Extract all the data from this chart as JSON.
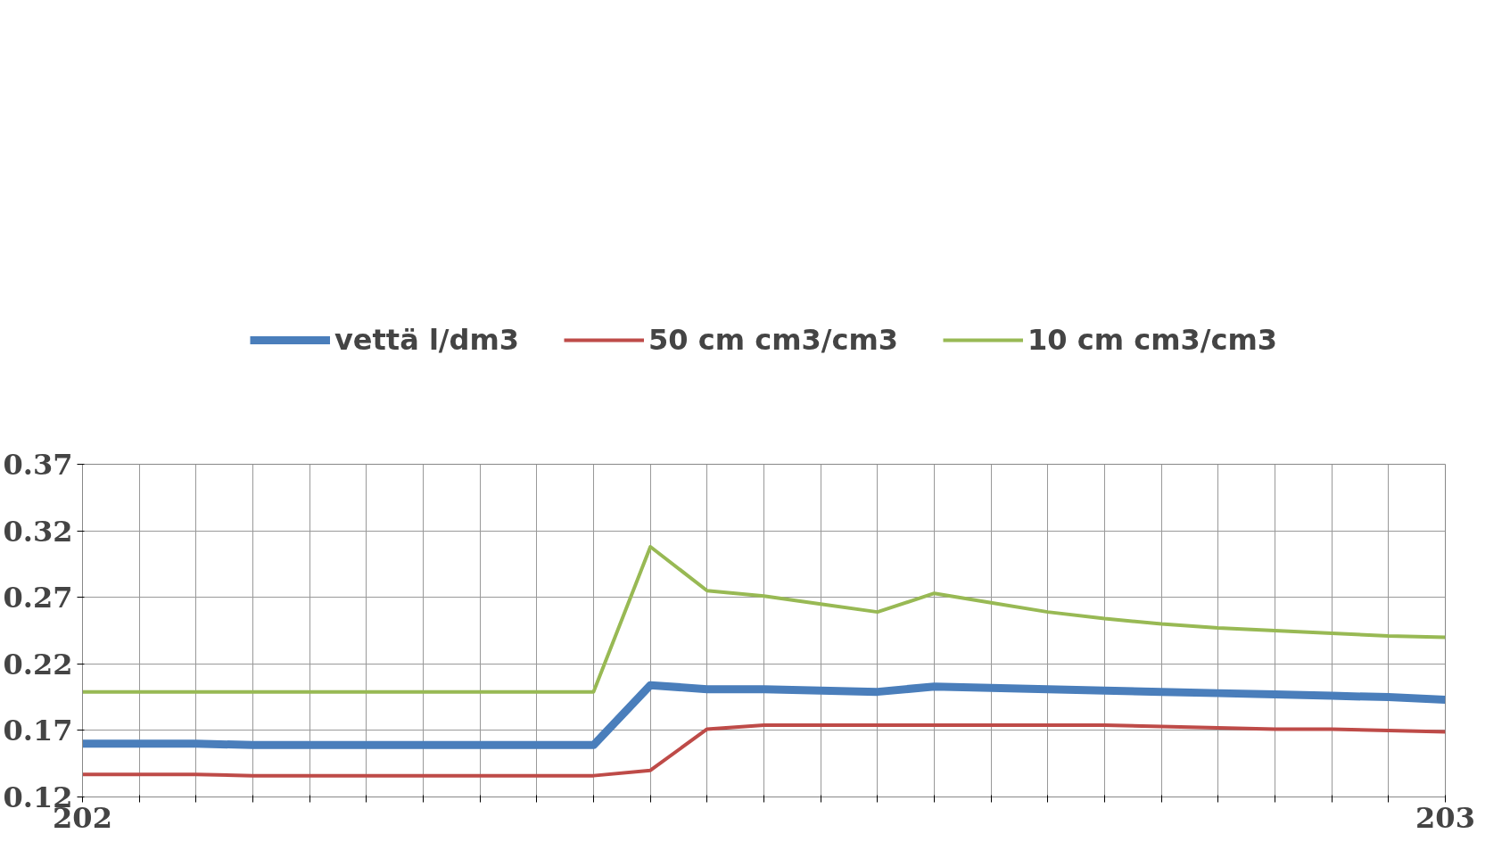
{
  "chart_data": {
    "type": "line",
    "x": [
      202,
      202.0417,
      202.0833,
      202.125,
      202.1667,
      202.2083,
      202.25,
      202.2917,
      202.3333,
      202.375,
      202.4167,
      202.4583,
      202.5,
      202.5417,
      202.5833,
      202.625,
      202.6667,
      202.7083,
      202.75,
      202.7917,
      202.8333,
      202.875,
      202.9167,
      202.9583,
      203
    ],
    "series": [
      {
        "name": "vettä l/dm3",
        "color": "#4a7ebb",
        "values": [
          0.16,
          0.16,
          0.16,
          0.159,
          0.159,
          0.159,
          0.159,
          0.159,
          0.159,
          0.159,
          0.204,
          0.201,
          0.201,
          0.2,
          0.199,
          0.203,
          0.202,
          0.201,
          0.2,
          0.199,
          0.198,
          0.197,
          0.196,
          0.195,
          0.193
        ]
      },
      {
        "name": "50 cm cm3/cm3",
        "color": "#be4b48",
        "values": [
          0.137,
          0.137,
          0.137,
          0.136,
          0.136,
          0.136,
          0.136,
          0.136,
          0.136,
          0.136,
          0.14,
          0.171,
          0.174,
          0.174,
          0.174,
          0.174,
          0.174,
          0.174,
          0.174,
          0.173,
          0.172,
          0.171,
          0.171,
          0.17,
          0.169
        ]
      },
      {
        "name": "10 cm cm3/cm3",
        "color": "#98b954",
        "values": [
          0.199,
          0.199,
          0.199,
          0.199,
          0.199,
          0.199,
          0.199,
          0.199,
          0.199,
          0.199,
          0.308,
          0.275,
          0.271,
          0.265,
          0.259,
          0.273,
          0.266,
          0.259,
          0.254,
          0.25,
          0.247,
          0.245,
          0.243,
          0.241,
          0.24
        ]
      }
    ],
    "xlim": [
      202,
      203
    ],
    "xticks": [
      202,
      {
        "value": 202.0417,
        "label": null
      },
      {
        "value": 202.0833,
        "label": null
      },
      {
        "value": 202.125,
        "label": null
      },
      {
        "value": 202.1667,
        "label": null
      },
      {
        "value": 202.2083,
        "label": null
      },
      {
        "value": 202.25,
        "label": null
      },
      {
        "value": 202.2917,
        "label": null
      },
      {
        "value": 202.3333,
        "label": null
      },
      {
        "value": 202.375,
        "label": null
      },
      {
        "value": 202.4167,
        "label": null
      },
      {
        "value": 202.4583,
        "label": null
      },
      {
        "value": 202.5,
        "label": null
      },
      {
        "value": 202.5417,
        "label": null
      },
      {
        "value": 202.5833,
        "label": null
      },
      {
        "value": 202.625,
        "label": null
      },
      {
        "value": 202.6667,
        "label": null
      },
      {
        "value": 202.7083,
        "label": null
      },
      {
        "value": 202.75,
        "label": null
      },
      {
        "value": 202.7917,
        "label": null
      },
      {
        "value": 202.8333,
        "label": null
      },
      {
        "value": 202.875,
        "label": null
      },
      {
        "value": 202.9167,
        "label": null
      },
      {
        "value": 202.9583,
        "label": null
      },
      203
    ],
    "ylim": [
      0.12,
      0.37
    ],
    "yticks": [
      0.12,
      0.17,
      0.22,
      0.27,
      0.32,
      0.37
    ],
    "grid": true,
    "legend": "top",
    "marker": "none",
    "line_style": "solid"
  }
}
